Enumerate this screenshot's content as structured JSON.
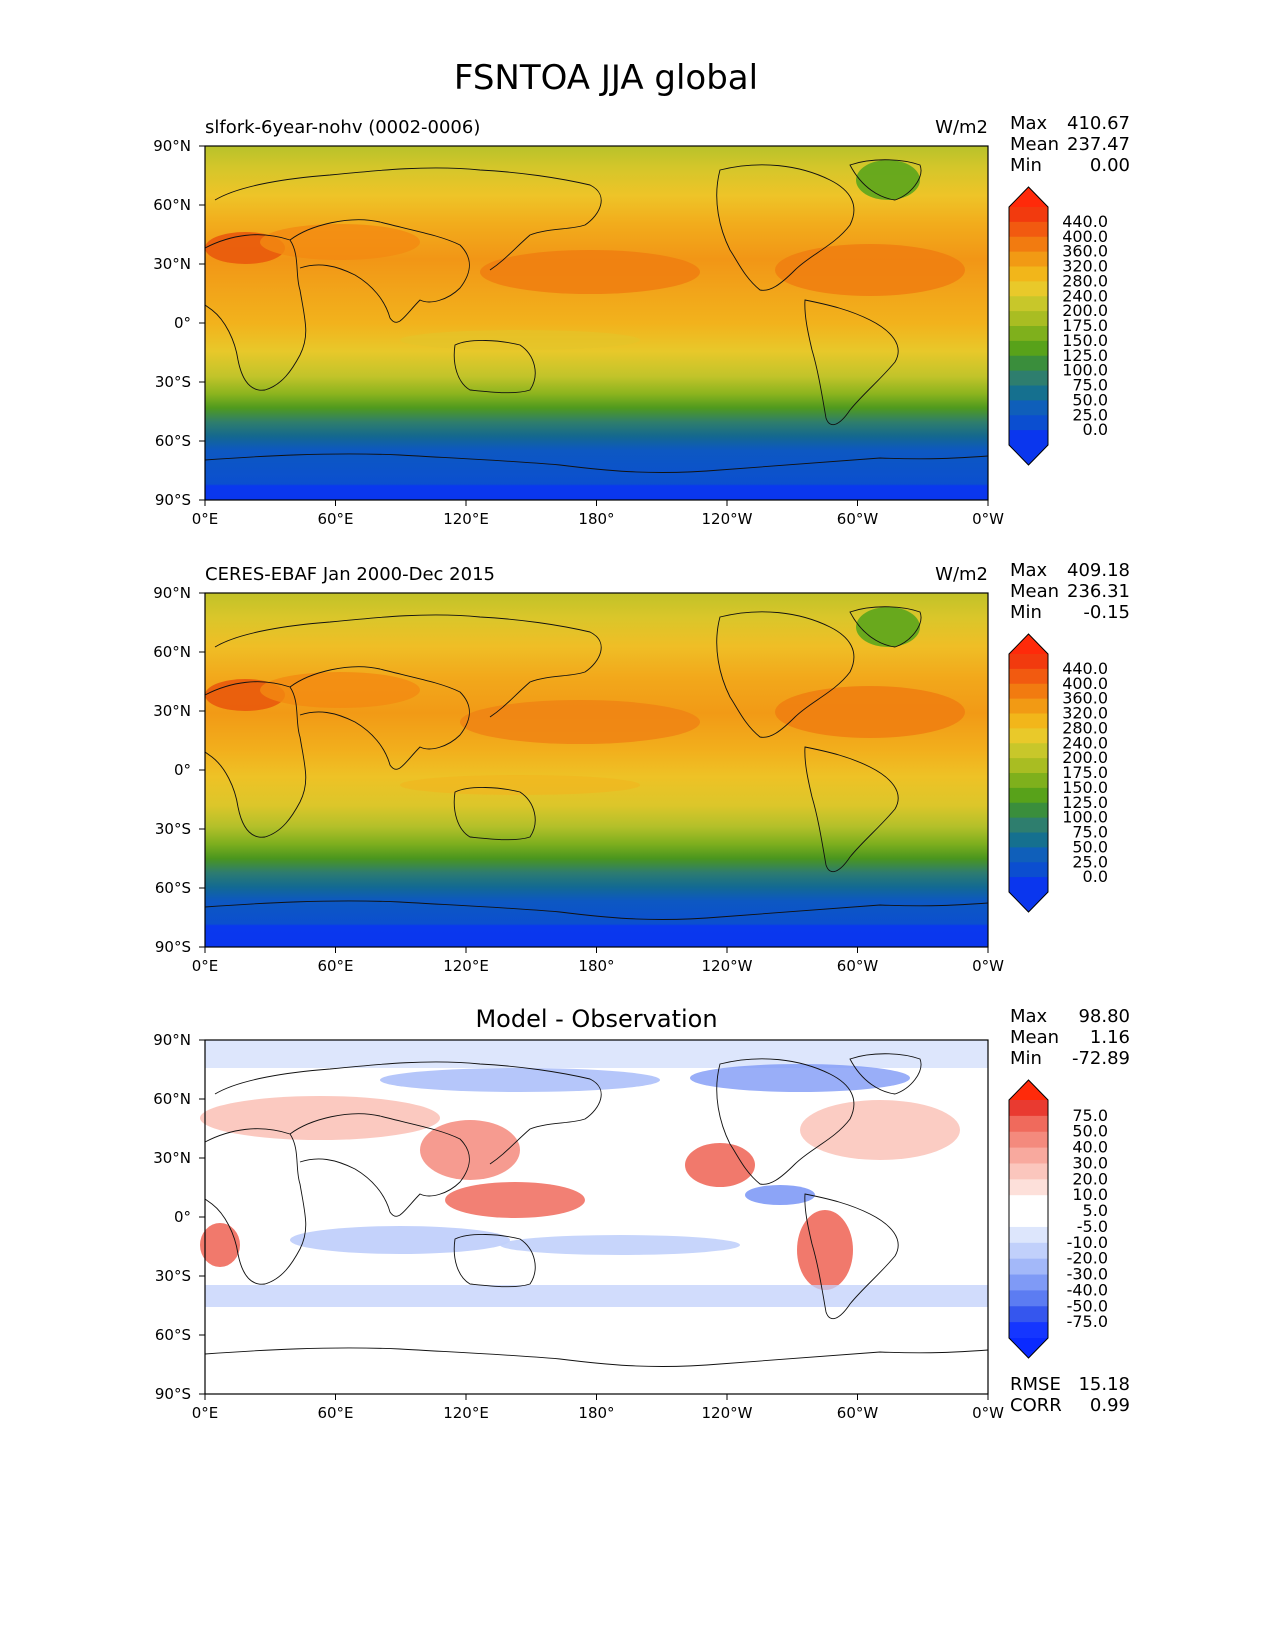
{
  "figure": {
    "title": "FSNTOA JJA global"
  },
  "axes": {
    "lat_labels": [
      "90°N",
      "60°N",
      "30°N",
      "0°",
      "30°S",
      "60°S",
      "90°S"
    ],
    "lon_labels": [
      "0°E",
      "60°E",
      "120°E",
      "180°",
      "120°W",
      "60°W",
      "0°W"
    ]
  },
  "panels": [
    {
      "kind": "field",
      "title_left": "slfork-6year-nohv (0002-0006)",
      "units": "W/m2",
      "stats": [
        {
          "label": "Max",
          "value": "410.67"
        },
        {
          "label": "Mean",
          "value": "237.47"
        },
        {
          "label": "Min",
          "value": "0.00"
        }
      ]
    },
    {
      "kind": "field",
      "title_left": "CERES-EBAF Jan 2000-Dec 2015",
      "units": "W/m2",
      "stats": [
        {
          "label": "Max",
          "value": "409.18"
        },
        {
          "label": "Mean",
          "value": "236.31"
        },
        {
          "label": "Min",
          "value": "-0.15"
        }
      ]
    },
    {
      "kind": "diff",
      "title_center": "Model - Observation",
      "stats": [
        {
          "label": "Max",
          "value": "98.80"
        },
        {
          "label": "Mean",
          "value": "1.16"
        },
        {
          "label": "Min",
          "value": "-72.89"
        }
      ],
      "metrics": [
        {
          "label": "RMSE",
          "value": "15.18"
        },
        {
          "label": "CORR",
          "value": "0.99"
        }
      ]
    }
  ],
  "colorbars": {
    "field": {
      "labels": [
        "440.0",
        "400.0",
        "360.0",
        "320.0",
        "280.0",
        "240.0",
        "200.0",
        "175.0",
        "150.0",
        "125.0",
        "100.0",
        "75.0",
        "50.0",
        "25.0",
        "0.0"
      ],
      "colors": [
        "#f23a0e",
        "#f25a10",
        "#f27b10",
        "#f29a14",
        "#f2b61a",
        "#e9c92a",
        "#c8c72a",
        "#a9bd22",
        "#7fb01c",
        "#58a21a",
        "#3a8e3c",
        "#2e7e6e",
        "#15708f",
        "#0f5fba",
        "#0b4ed0",
        "#0a36ee"
      ],
      "under": "#0a36ee",
      "over": "#ff2a0a"
    },
    "diff": {
      "labels": [
        "75.0",
        "50.0",
        "40.0",
        "30.0",
        "20.0",
        "10.0",
        "5.0",
        "-5.0",
        "-10.0",
        "-20.0",
        "-30.0",
        "-40.0",
        "-50.0",
        "-75.0"
      ],
      "colors": [
        "#e93a30",
        "#f06a5c",
        "#f48a7d",
        "#f8a99e",
        "#fbc6bd",
        "#fde0da",
        "#ffffff",
        "#ffffff",
        "#dde6fc",
        "#c1d0fb",
        "#a3b8f9",
        "#7f9af6",
        "#5c7cf2",
        "#3556ee",
        "#1536ff"
      ],
      "under": "#0a2aff",
      "over": "#ff2a0a"
    }
  },
  "chart_data": {
    "type": "heatmap",
    "title": "FSNTOA JJA global",
    "variable": "FSNTOA",
    "season": "JJA",
    "units": "W/m2",
    "xlim": [
      0,
      360
    ],
    "ylim": [
      -90,
      90
    ],
    "x_ticks": [
      0,
      60,
      120,
      180,
      240,
      300,
      360
    ],
    "y_ticks": [
      90,
      60,
      30,
      0,
      -30,
      -60,
      -90
    ],
    "field_levels": [
      0,
      25,
      50,
      75,
      100,
      125,
      150,
      175,
      200,
      240,
      280,
      320,
      360,
      400,
      440
    ],
    "diff_levels": [
      -75,
      -50,
      -40,
      -30,
      -20,
      -10,
      -5,
      5,
      10,
      20,
      30,
      40,
      50,
      75
    ],
    "zonal_bands_field": [
      {
        "lat": [
          80,
          90
        ],
        "value": 180
      },
      {
        "lat": [
          60,
          80
        ],
        "value": 230
      },
      {
        "lat": [
          40,
          60
        ],
        "value": 300
      },
      {
        "lat": [
          20,
          40
        ],
        "value": 330
      },
      {
        "lat": [
          0,
          20
        ],
        "value": 300
      },
      {
        "lat": [
          -20,
          0
        ],
        "value": 260
      },
      {
        "lat": [
          -35,
          -20
        ],
        "value": 190
      },
      {
        "lat": [
          -45,
          -35
        ],
        "value": 110
      },
      {
        "lat": [
          -55,
          -45
        ],
        "value": 50
      },
      {
        "lat": [
          -70,
          -55
        ],
        "value": 15
      },
      {
        "lat": [
          -90,
          -70
        ],
        "value": 0
      }
    ],
    "panels": [
      {
        "name": "slfork-6year-nohv (0002-0006)",
        "max": 410.67,
        "mean": 237.47,
        "min": 0.0
      },
      {
        "name": "CERES-EBAF Jan 2000-Dec 2015",
        "max": 409.18,
        "mean": 236.31,
        "min": -0.15
      },
      {
        "name": "Model - Observation",
        "max": 98.8,
        "mean": 1.16,
        "min": -72.89,
        "rmse": 15.18,
        "corr": 0.99
      }
    ]
  }
}
